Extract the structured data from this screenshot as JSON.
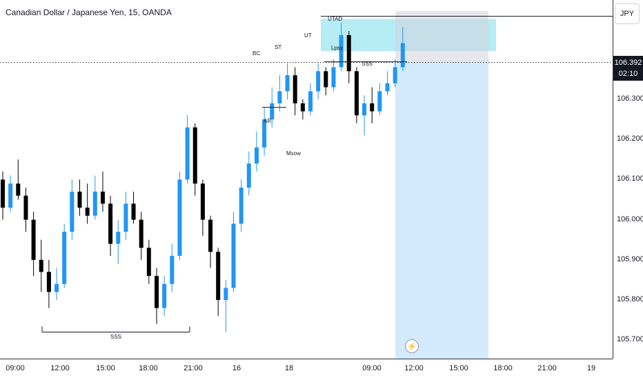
{
  "title": "Canadian Dollar / Japanese Yen, 15, OANDA",
  "currency_button": "JPY",
  "current_price": "106.392",
  "countdown": "02:10",
  "colors": {
    "up": "#2196f3",
    "down": "#000000",
    "target_zone": "#b2ebf2",
    "stop_zone": "#d1d4dc",
    "range_zone": "#bbdefb"
  },
  "icons": {
    "lightning": "lightning-icon"
  },
  "chart_data": {
    "type": "candlestick",
    "symbol": "CADJPY",
    "timeframe": "15",
    "y_ticks": [
      "106.300",
      "106.200",
      "106.100",
      "106.000",
      "105.900",
      "105.800",
      "105.700"
    ],
    "x_ticks": [
      "09:00",
      "12:00",
      "15:00",
      "18:00",
      "21:00",
      "16",
      "18",
      "09:00",
      "12:00",
      "15:00",
      "18:00",
      "21:00",
      "19"
    ],
    "ylim": [
      105.67,
      106.58
    ],
    "annotations": [
      "UTAD",
      "BC",
      "ST",
      "UT",
      "Lpsy",
      "SSS",
      "AR",
      "Msow",
      "SSS"
    ],
    "levels": {
      "sss_low": 105.72,
      "sss_high": 106.39,
      "ar": 106.28,
      "utad": 106.5,
      "current": 106.392
    },
    "position": {
      "entry": 106.392,
      "target": 106.42,
      "stop": 106.5
    },
    "candles": [
      [
        106.1,
        106.12,
        106.0,
        106.03
      ],
      [
        106.03,
        106.11,
        106.02,
        106.09
      ],
      [
        106.09,
        106.15,
        106.05,
        106.06
      ],
      [
        106.06,
        106.08,
        105.97,
        106.0
      ],
      [
        106.0,
        106.02,
        105.86,
        105.9
      ],
      [
        105.9,
        105.95,
        105.82,
        105.87
      ],
      [
        105.87,
        105.9,
        105.78,
        105.82
      ],
      [
        105.82,
        105.88,
        105.8,
        105.84
      ],
      [
        105.84,
        105.99,
        105.83,
        105.97
      ],
      [
        105.97,
        106.1,
        105.95,
        106.07
      ],
      [
        106.07,
        106.1,
        106.01,
        106.03
      ],
      [
        106.03,
        106.09,
        105.99,
        106.01
      ],
      [
        106.01,
        106.11,
        106.0,
        106.07
      ],
      [
        106.07,
        106.12,
        106.02,
        106.04
      ],
      [
        106.04,
        106.06,
        105.91,
        105.94
      ],
      [
        105.94,
        106.0,
        105.89,
        105.97
      ],
      [
        105.97,
        106.07,
        105.95,
        106.04
      ],
      [
        106.04,
        106.07,
        105.99,
        106.0
      ],
      [
        106.0,
        106.02,
        105.9,
        105.93
      ],
      [
        105.93,
        105.95,
        105.84,
        105.86
      ],
      [
        105.86,
        105.88,
        105.74,
        105.78
      ],
      [
        105.78,
        105.86,
        105.76,
        105.84
      ],
      [
        105.84,
        105.94,
        105.82,
        105.91
      ],
      [
        105.91,
        106.12,
        105.9,
        106.1
      ],
      [
        106.1,
        106.26,
        106.09,
        106.23
      ],
      [
        106.23,
        106.24,
        106.06,
        106.09
      ],
      [
        106.09,
        106.1,
        105.96,
        106.0
      ],
      [
        106.0,
        106.01,
        105.88,
        105.92
      ],
      [
        105.92,
        105.93,
        105.76,
        105.8
      ],
      [
        105.8,
        105.85,
        105.72,
        105.83
      ],
      [
        105.83,
        106.02,
        105.82,
        105.99
      ],
      [
        105.99,
        106.1,
        105.97,
        106.08
      ],
      [
        106.08,
        106.17,
        106.06,
        106.14
      ],
      [
        106.14,
        106.22,
        106.12,
        106.18
      ],
      [
        106.18,
        106.28,
        106.16,
        106.25
      ],
      [
        106.25,
        106.33,
        106.23,
        106.29
      ],
      [
        106.29,
        106.36,
        106.27,
        106.32
      ],
      [
        106.32,
        106.39,
        106.3,
        106.36
      ],
      [
        106.36,
        106.38,
        106.26,
        106.29
      ],
      [
        106.29,
        106.3,
        106.25,
        106.27
      ],
      [
        106.27,
        106.34,
        106.26,
        106.32
      ],
      [
        106.32,
        106.39,
        106.3,
        106.37
      ],
      [
        106.37,
        106.38,
        106.31,
        106.33
      ],
      [
        106.33,
        106.4,
        106.32,
        106.38
      ],
      [
        106.38,
        106.49,
        106.37,
        106.46
      ],
      [
        106.46,
        106.47,
        106.34,
        106.37
      ],
      [
        106.37,
        106.38,
        106.24,
        106.26
      ],
      [
        106.26,
        106.31,
        106.21,
        106.29
      ],
      [
        106.29,
        106.33,
        106.24,
        106.27
      ],
      [
        106.27,
        106.34,
        106.26,
        106.32
      ],
      [
        106.32,
        106.37,
        106.31,
        106.34
      ],
      [
        106.34,
        106.4,
        106.33,
        106.38
      ],
      [
        106.38,
        106.48,
        106.37,
        106.44
      ]
    ]
  }
}
